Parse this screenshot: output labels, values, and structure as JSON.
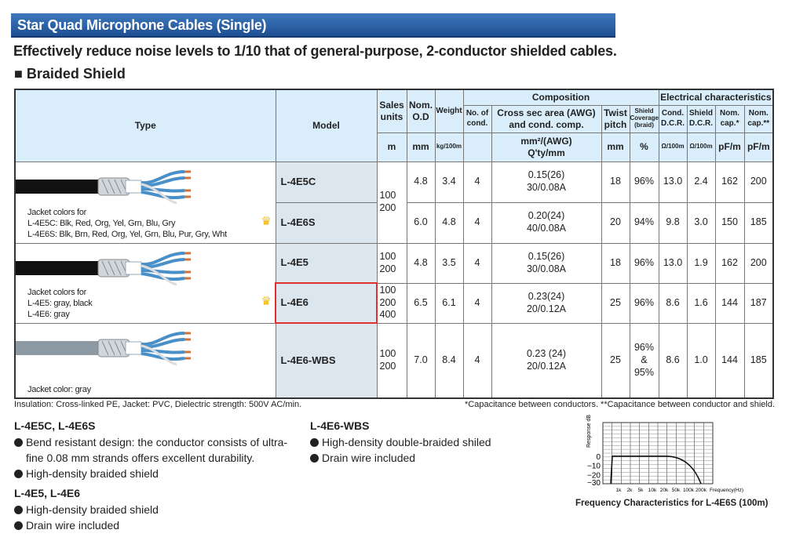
{
  "title": "Star Quad Microphone Cables (Single)",
  "subtitle": "Effectively reduce noise levels to 1/10 that of general-purpose, 2-conductor shielded cables.",
  "section": "■ Braided Shield",
  "headers": {
    "type": "Type",
    "model": "Model",
    "sales": "Sales units",
    "od": "Nom. O.D",
    "weight": "Weight",
    "composition": "Composition",
    "electrical": "Electrical characteristics",
    "cond": "No. of cond.",
    "cross": "Cross sec area (AWG) and cond. comp.",
    "twist": "Twist pitch",
    "shield": "Shield Coverage (braid)",
    "cdcr": "Cond. D.C.R.",
    "sdcr": "Shield D.C.R.",
    "cap1": "Nom. cap.*",
    "cap2": "Nom. cap.**"
  },
  "units": {
    "sales": "m",
    "od": "mm",
    "weight": "kg/100m",
    "cross1": "mm²/(AWG)",
    "cross2": "Q'ty/mm",
    "twist": "mm",
    "shield": "%",
    "cdcr": "Ω/100m",
    "sdcr": "Ω/100m",
    "cap1": "pF/m",
    "cap2": "pF/m"
  },
  "types": [
    {
      "l1": "Jacket colors for",
      "l2": "L-4E5C: Blk, Red, Org, Yel, Grn, Blu, Gry",
      "l3": "L-4E6S: Blk, Brn, Red, Org, Yel, Grn, Blu, Pur, Gry, Wht"
    },
    {
      "l1": "Jacket colors for",
      "l2": "L-4E5: gray, black",
      "l3": "L-4E6: gray"
    },
    {
      "l1": "Jacket color: gray"
    }
  ],
  "rows": [
    {
      "model": "L-4E5C",
      "sales": "100 200",
      "od": "4.8",
      "weight": "3.4",
      "cond": "4",
      "cross1": "0.15(26)",
      "cross2": "30/0.08A",
      "twist": "18",
      "shield": "96%",
      "cdcr": "13.0",
      "sdcr": "2.4",
      "cap1": "162",
      "cap2": "200"
    },
    {
      "model": "L-4E6S",
      "od": "6.0",
      "weight": "4.8",
      "cond": "4",
      "cross1": "0.20(24)",
      "cross2": "40/0.08A",
      "twist": "20",
      "shield": "94%",
      "cdcr": "9.8",
      "sdcr": "3.0",
      "cap1": "150",
      "cap2": "185"
    },
    {
      "model": "L-4E5",
      "sales": "100 200",
      "od": "4.8",
      "weight": "3.5",
      "cond": "4",
      "cross1": "0.15(26)",
      "cross2": "30/0.08A",
      "twist": "18",
      "shield": "96%",
      "cdcr": "13.0",
      "sdcr": "1.9",
      "cap1": "162",
      "cap2": "200"
    },
    {
      "model": "L-4E6",
      "sales": "100 200 400",
      "od": "6.5",
      "weight": "6.1",
      "cond": "4",
      "cross1": "0.23(24)",
      "cross2": "20/0.12A",
      "twist": "25",
      "shield": "96%",
      "cdcr": "8.6",
      "sdcr": "1.6",
      "cap1": "144",
      "cap2": "187"
    },
    {
      "model": "L-4E6-WBS",
      "sales": "100 200",
      "od": "7.0",
      "weight": "8.4",
      "cond": "4",
      "cross1": "0.23 (24)",
      "cross2": "20/0.12A",
      "twist": "25",
      "shield": "96% & 95%",
      "cdcr": "8.6",
      "sdcr": "1.0",
      "cap1": "144",
      "cap2": "185"
    }
  ],
  "notes": {
    "left": "Insulation: Cross-linked PE,  Jacket: PVC,  Dielectric strength: 500V AC/min.",
    "right": "*Capacitance between conductors.  **Capacitance between conductor and shield."
  },
  "features": [
    {
      "title": "L-4E5C, L-4E6S",
      "items": [
        "Bend resistant design: the conductor consists of ultra-",
        "fine 0.08 mm strands offers excellent durability.",
        "High-density braided shield"
      ]
    },
    {
      "title": "L-4E5, L-4E6",
      "items": [
        "High-density braided shield",
        "Drain wire included"
      ]
    },
    {
      "title": "L-4E6-WBS",
      "items": [
        "High-density double-braided shiled",
        "Drain wire included"
      ]
    }
  ],
  "chart_data": {
    "type": "line",
    "title": "Frequency Characteristics for L-4E6S (100m)",
    "xlabel": "Frequency(Hz)",
    "ylabel": "Response dB",
    "xticks": [
      "1k",
      "2k",
      "5k",
      "10k",
      "20k",
      "50k",
      "100k",
      "200k"
    ],
    "yticks": [
      "0",
      "−10",
      "−20",
      "−30"
    ],
    "ylim": [
      -30,
      10
    ],
    "series": [
      {
        "name": "L-4E6S",
        "x": [
          20,
          25,
          1000,
          10000,
          20000,
          50000,
          100000,
          200000
        ],
        "y": [
          -30,
          0,
          0,
          0,
          -0.5,
          -4,
          -12,
          -30
        ]
      }
    ]
  },
  "colors": {
    "title_bar": "#2a5fa5",
    "header_bg": "#d9eefa",
    "model_bg": "#dbe6ef",
    "highlight": "#e03030",
    "crown": "#f2b800"
  }
}
